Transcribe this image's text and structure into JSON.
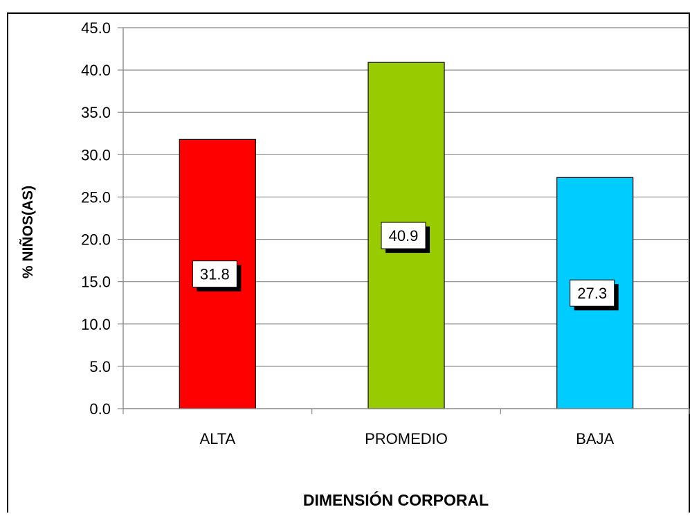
{
  "chart_data": {
    "type": "bar",
    "title": "",
    "xlabel": "DIMENSIÓN CORPORAL",
    "ylabel": "% NIÑOS(AS)",
    "categories": [
      "ALTA",
      "PROMEDIO",
      "BAJA"
    ],
    "values": [
      31.8,
      40.9,
      27.3
    ],
    "data_labels": [
      "31.8",
      "40.9",
      "27.3"
    ],
    "bar_colors": [
      "#ff0000",
      "#99cc00",
      "#00ccff"
    ],
    "ylim": [
      0,
      45
    ],
    "yticks": [
      "0.0",
      "5.0",
      "10.0",
      "15.0",
      "20.0",
      "25.0",
      "30.0",
      "35.0",
      "40.0",
      "45.0"
    ],
    "grid": true,
    "legend": "none"
  }
}
